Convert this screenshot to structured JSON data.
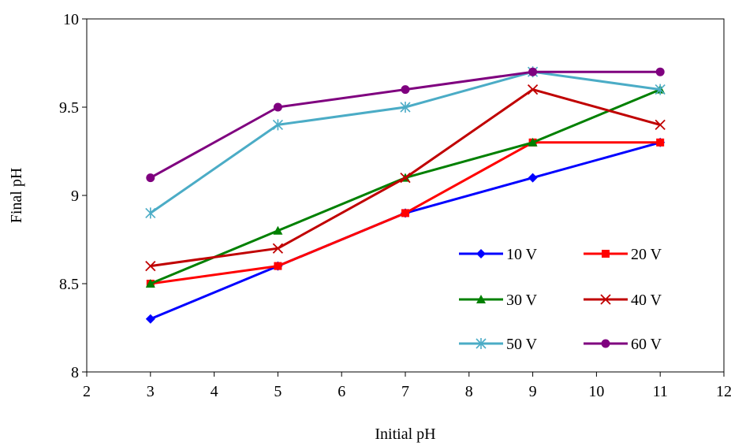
{
  "chart_data": {
    "type": "line",
    "title": "",
    "xlabel": "Initial pH",
    "ylabel": "Final pH",
    "xlim": [
      2,
      12
    ],
    "ylim": [
      8,
      10
    ],
    "xticks": [
      2,
      3,
      4,
      5,
      6,
      7,
      8,
      9,
      10,
      11,
      12
    ],
    "yticks": [
      8,
      8.5,
      9,
      9.5,
      10
    ],
    "grid": false,
    "legend_position": "bottom-right",
    "x": [
      3,
      5,
      7,
      9,
      11
    ],
    "series": [
      {
        "name": "10 V",
        "color": "#0000FF",
        "marker": "diamond",
        "values": [
          8.3,
          8.6,
          8.9,
          9.1,
          9.3
        ]
      },
      {
        "name": "20 V",
        "color": "#FF0000",
        "marker": "square",
        "values": [
          8.5,
          8.6,
          8.9,
          9.3,
          9.3
        ]
      },
      {
        "name": "30 V",
        "color": "#008000",
        "marker": "triangle",
        "values": [
          8.5,
          8.8,
          9.1,
          9.3,
          9.6
        ]
      },
      {
        "name": "40 V",
        "color": "#C00000",
        "marker": "x",
        "values": [
          8.6,
          8.7,
          9.1,
          9.6,
          9.4
        ]
      },
      {
        "name": "50 V",
        "color": "#4BACC6",
        "marker": "asterisk",
        "values": [
          8.9,
          9.4,
          9.5,
          9.7,
          9.6
        ]
      },
      {
        "name": "60 V",
        "color": "#7F007F",
        "marker": "circle",
        "values": [
          9.1,
          9.5,
          9.6,
          9.7,
          9.7
        ]
      }
    ]
  }
}
